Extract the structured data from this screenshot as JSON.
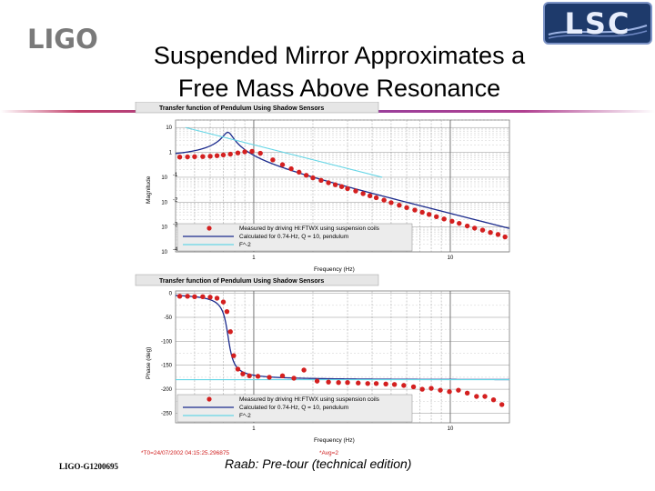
{
  "header": {
    "logo_left": "LIGO",
    "logo_right": "LSC",
    "title_line1": "Suspended Mirror Approximates a",
    "title_line2": "Free Mass Above Resonance"
  },
  "footer": {
    "doc_id": "LIGO-G1200695",
    "caption": "Raab: Pre-tour (technical edition)"
  },
  "colors": {
    "measured": "#d42020",
    "calculated": "#1a2a8c",
    "fsquared": "#66d6e6",
    "accent_line": "#8e3ea0"
  },
  "chart_data": [
    {
      "type": "scatter",
      "title": "Transfer function of Pendulum Using Shadow Sensors",
      "xlabel": "Frequency (Hz)",
      "ylabel": "Magnitude",
      "x_scale": "log",
      "y_scale": "log",
      "xlim": [
        0.4,
        20
      ],
      "ylim": [
        0.0001,
        20
      ],
      "xticks": [
        {
          "v": 1,
          "label": "1"
        },
        {
          "v": 10,
          "label": "10"
        }
      ],
      "yticks": [
        {
          "v": 10,
          "label": "10",
          "sup": ""
        },
        {
          "v": 1,
          "label": "1",
          "sup": ""
        },
        {
          "v": 0.1,
          "label": "10",
          "sup": "-1"
        },
        {
          "v": 0.01,
          "label": "10",
          "sup": "-2"
        },
        {
          "v": 0.001,
          "label": "10",
          "sup": "-3"
        },
        {
          "v": 0.0001,
          "label": "10",
          "sup": "-4"
        }
      ],
      "legend": {
        "placement": "bottom-left",
        "entries": [
          "Measured by driving HI:FTWX using suspension coils",
          "Calculated for 0.74-Hz, Q = 10, pendulum",
          "F^-2"
        ]
      },
      "series": [
        {
          "name": "Measured by driving HI:FTWX using suspension coils",
          "kind": "points",
          "x": [
            0.42,
            0.46,
            0.5,
            0.55,
            0.6,
            0.65,
            0.7,
            0.76,
            0.83,
            0.9,
            0.98,
            1.08,
            1.25,
            1.4,
            1.55,
            1.7,
            1.85,
            2.0,
            2.2,
            2.4,
            2.6,
            2.8,
            3.0,
            3.3,
            3.6,
            3.9,
            4.2,
            4.6,
            5.0,
            5.5,
            6.0,
            6.6,
            7.2,
            7.8,
            8.5,
            9.3,
            10.2,
            11.1,
            12.2,
            13.3,
            14.6,
            16.0,
            17.5,
            19.0
          ],
          "y": [
            0.65,
            0.66,
            0.67,
            0.68,
            0.7,
            0.74,
            0.79,
            0.85,
            0.95,
            1.05,
            1.1,
            0.92,
            0.5,
            0.32,
            0.22,
            0.16,
            0.12,
            0.095,
            0.075,
            0.06,
            0.05,
            0.042,
            0.035,
            0.028,
            0.022,
            0.018,
            0.015,
            0.012,
            0.0095,
            0.0075,
            0.006,
            0.0048,
            0.0039,
            0.0032,
            0.0026,
            0.0021,
            0.0017,
            0.0014,
            0.0011,
            0.0009,
            0.00075,
            0.0006,
            0.0005,
            0.0004
          ]
        },
        {
          "name": "Calculated for 0.74-Hz, Q = 10, pendulum",
          "kind": "line",
          "model": "pendulum_mag",
          "f0": 0.74,
          "Q": 10,
          "gain": 0.64
        },
        {
          "name": "F^-2",
          "kind": "line",
          "model": "fsquared",
          "points": [
            [
              0.45,
              10
            ],
            [
              4.5,
              0.1
            ]
          ]
        }
      ]
    },
    {
      "type": "scatter",
      "title": "Transfer function of Pendulum Using Shadow Sensors",
      "xlabel": "Frequency (Hz)",
      "ylabel": "Phase (deg)",
      "x_scale": "log",
      "y_scale": "linear",
      "xlim": [
        0.4,
        20
      ],
      "ylim": [
        -270,
        5
      ],
      "xticks": [
        {
          "v": 1,
          "label": "1"
        },
        {
          "v": 10,
          "label": "10"
        }
      ],
      "yticks": [
        {
          "v": 0,
          "label": "0"
        },
        {
          "v": -50,
          "label": "-50"
        },
        {
          "v": -100,
          "label": "-100"
        },
        {
          "v": -150,
          "label": "-150"
        },
        {
          "v": -200,
          "label": "-200"
        },
        {
          "v": -250,
          "label": "-250"
        }
      ],
      "legend": {
        "placement": "bottom-left",
        "entries": [
          "Measured by driving HI:FTWX using suspension coils",
          "Calculated for 0.74-Hz, Q = 10, pendulum",
          "F^-2"
        ]
      },
      "series": [
        {
          "name": "Measured by driving HI:FTWX using suspension coils",
          "kind": "points",
          "x": [
            0.42,
            0.46,
            0.5,
            0.55,
            0.6,
            0.65,
            0.7,
            0.73,
            0.76,
            0.79,
            0.83,
            0.88,
            0.95,
            1.05,
            1.2,
            1.4,
            1.6,
            1.8,
            2.1,
            2.4,
            2.7,
            3.0,
            3.4,
            3.8,
            4.2,
            4.7,
            5.2,
            5.8,
            6.5,
            7.2,
            8.0,
            8.9,
            9.9,
            11.0,
            12.2,
            13.6,
            15.0,
            16.6,
            18.3
          ],
          "y": [
            -6,
            -6,
            -7,
            -7,
            -8,
            -10,
            -18,
            -38,
            -80,
            -130,
            -158,
            -168,
            -172,
            -173,
            -175,
            -172,
            -177,
            -160,
            -183,
            -185,
            -186,
            -186,
            -187,
            -188,
            -188,
            -189,
            -190,
            -192,
            -195,
            -200,
            -198,
            -202,
            -205,
            -202,
            -208,
            -215,
            -215,
            -222,
            -232
          ]
        },
        {
          "name": "Calculated for 0.74-Hz, Q = 10, pendulum",
          "kind": "line",
          "model": "pendulum_phase",
          "f0": 0.74,
          "Q": 10
        },
        {
          "name": "F^-2",
          "kind": "line",
          "model": "constant",
          "value": -180
        }
      ]
    }
  ],
  "annotations": {
    "t0": "*T0=24/07/2002 04:15:25.296875",
    "avg": "*Avg=2"
  }
}
